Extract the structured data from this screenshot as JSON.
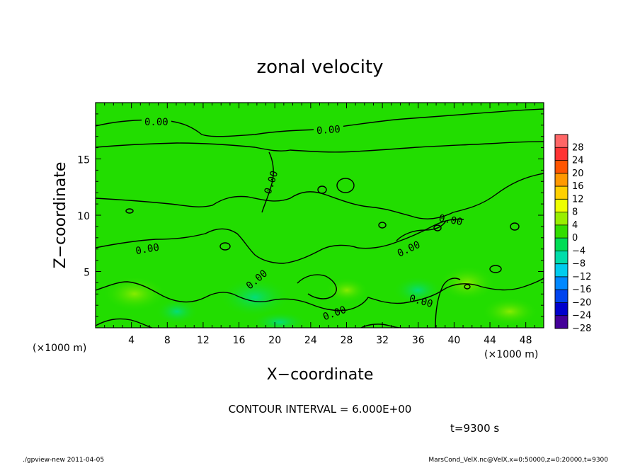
{
  "chart_data": {
    "type": "heatmap",
    "title": "zonal velocity",
    "xlabel": "X−coordinate",
    "ylabel": "Z−coordinate",
    "x_unit": "(×1000 m)",
    "x_unit_right": "(×1000 m)",
    "xlim": [
      0,
      50
    ],
    "ylim": [
      0,
      20
    ],
    "x_ticks": [
      4,
      8,
      12,
      16,
      20,
      24,
      28,
      32,
      36,
      40,
      44,
      48
    ],
    "y_ticks": [
      5,
      10,
      15
    ],
    "contour_interval": "CONTOUR INTERVAL = 6.000E+00",
    "contour_labels": [
      "0.00",
      "0.00",
      "0.00",
      "0.00",
      "0.00",
      "0.00",
      "0.00",
      "0.00",
      "0.00",
      "0.00"
    ],
    "colorbar": {
      "levels": [
        28,
        24,
        20,
        16,
        12,
        8,
        4,
        0,
        -4,
        -8,
        -12,
        -16,
        -20,
        -24,
        -28
      ],
      "tick_labels": [
        "28",
        "24",
        "20",
        "16",
        "12",
        "8",
        "4",
        "0",
        "−4",
        "−8",
        "−12",
        "−16",
        "−20",
        "−24",
        "−28"
      ],
      "colors": [
        "#ff6666",
        "#ff3333",
        "#ff5500",
        "#ff9900",
        "#ffd000",
        "#eeff00",
        "#99ee00",
        "#33dd00",
        "#00dd55",
        "#00ddaa",
        "#00ccee",
        "#0088ff",
        "#0044ee",
        "#0000cc",
        "#440099"
      ]
    },
    "field_color": "#22dd00",
    "time": "t=9300 s"
  },
  "footer": {
    "left": "./gpview-new  2011-04-05",
    "right": "MarsCond_VelX.nc@VelX,x=0:50000,z=0:20000,t=9300"
  }
}
